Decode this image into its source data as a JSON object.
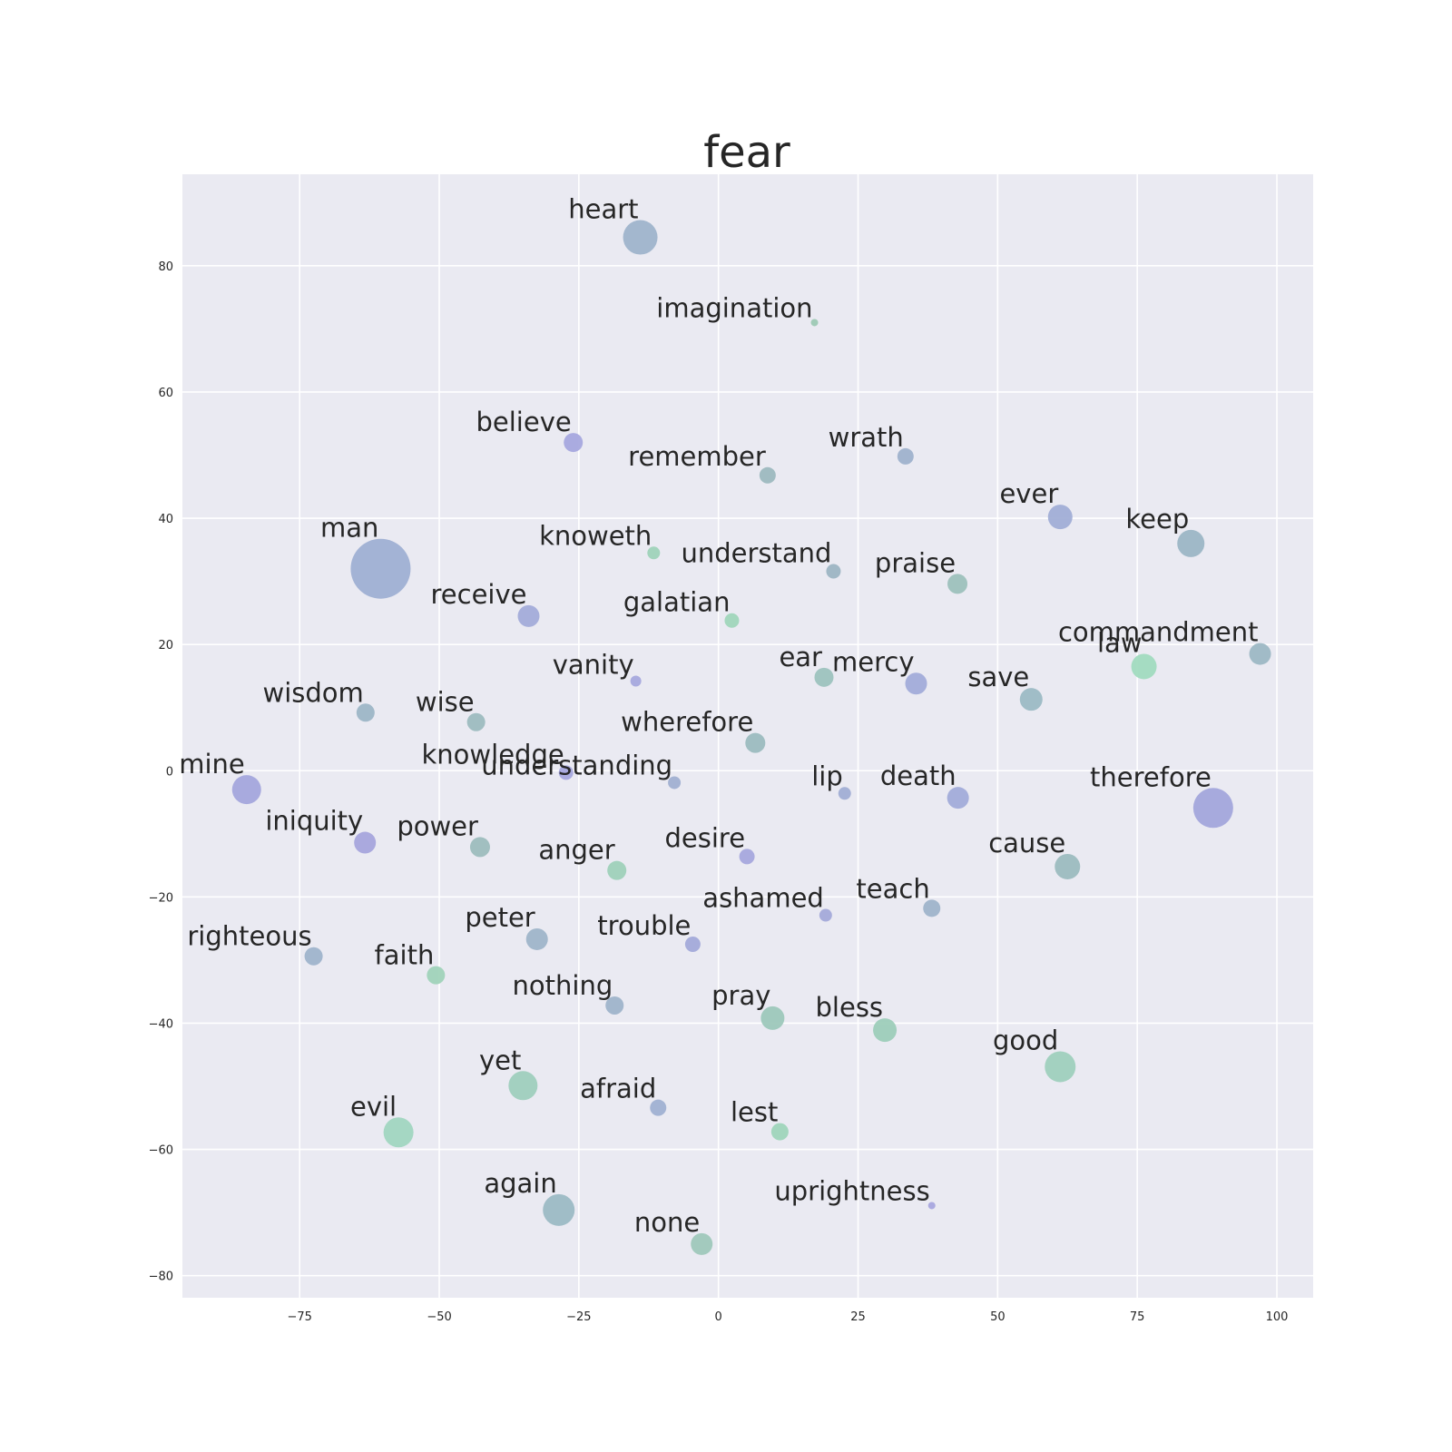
{
  "chart_data": {
    "type": "scatter",
    "title": "fear",
    "xlabel": "",
    "ylabel": "",
    "xlim": [
      -96,
      106.5
    ],
    "ylim": [
      -83.5,
      94.5
    ],
    "grid": true,
    "x_ticks": [
      -75,
      -50,
      -25,
      0,
      25,
      50,
      75,
      100
    ],
    "x_tick_labels": [
      "−75",
      "−50",
      "−25",
      "0",
      "25",
      "50",
      "75",
      "100"
    ],
    "y_ticks": [
      -80,
      -60,
      -40,
      -20,
      0,
      20,
      40,
      60,
      80
    ],
    "y_tick_labels": [
      "−80",
      "−60",
      "−40",
      "−20",
      "0",
      "20",
      "40",
      "60",
      "80"
    ],
    "colors": {
      "blue": "#9fb0d3",
      "purple": "#a3a6db",
      "slate": "#9db5c5",
      "teal": "#9dc3c0",
      "mint": "#a3d9c0"
    },
    "points": [
      {
        "label": "heart",
        "x": -14,
        "y": 84.5,
        "size": 19,
        "color": "#9fb4cb"
      },
      {
        "label": "imagination",
        "x": 17.2,
        "y": 71,
        "size": 4,
        "color": "#9dc9b4"
      },
      {
        "label": "believe",
        "x": -26,
        "y": 52,
        "size": 10.5,
        "color": "#a7a8de"
      },
      {
        "label": "remember",
        "x": 8.8,
        "y": 46.8,
        "size": 9,
        "color": "#9db9bf"
      },
      {
        "label": "wrath",
        "x": 33.5,
        "y": 49.8,
        "size": 9,
        "color": "#9fb2cc"
      },
      {
        "label": "ever",
        "x": 61.2,
        "y": 40.2,
        "size": 13.5,
        "color": "#a1aed6"
      },
      {
        "label": "keep",
        "x": 84.6,
        "y": 36,
        "size": 15,
        "color": "#9cb6c5"
      },
      {
        "label": "man",
        "x": -60.5,
        "y": 32,
        "size": 33,
        "color": "#9fb0d3"
      },
      {
        "label": "knoweth",
        "x": -11.6,
        "y": 34.5,
        "size": 7,
        "color": "#9fd3b9"
      },
      {
        "label": "understand",
        "x": 20.6,
        "y": 31.6,
        "size": 8,
        "color": "#9db5c3"
      },
      {
        "label": "praise",
        "x": 42.8,
        "y": 29.6,
        "size": 11,
        "color": "#9dc1bc"
      },
      {
        "label": "receive",
        "x": -34,
        "y": 24.5,
        "size": 12,
        "color": "#a3acd9"
      },
      {
        "label": "galatian",
        "x": 2.4,
        "y": 23.8,
        "size": 8,
        "color": "#a0d6bb"
      },
      {
        "label": "commandment",
        "x": 97,
        "y": 18.5,
        "size": 12,
        "color": "#9db8c4"
      },
      {
        "label": "law",
        "x": 76.2,
        "y": 16.5,
        "size": 14,
        "color": "#a1dbbf"
      },
      {
        "label": "vanity",
        "x": -14.8,
        "y": 14.2,
        "size": 6,
        "color": "#a6a9dd"
      },
      {
        "label": "ear",
        "x": 18.9,
        "y": 14.8,
        "size": 10.5,
        "color": "#9dc3be"
      },
      {
        "label": "mercy",
        "x": 35.4,
        "y": 13.8,
        "size": 12,
        "color": "#a2acd9"
      },
      {
        "label": "save",
        "x": 56,
        "y": 11.3,
        "size": 12.5,
        "color": "#9cbac4"
      },
      {
        "label": "wisdom",
        "x": -63.2,
        "y": 9.2,
        "size": 10,
        "color": "#9db6c6"
      },
      {
        "label": "wise",
        "x": -43.4,
        "y": 7.7,
        "size": 10,
        "color": "#9dbcbf"
      },
      {
        "label": "wherefore",
        "x": 6.6,
        "y": 4.4,
        "size": 11,
        "color": "#9cbcbf"
      },
      {
        "label": "knowledge",
        "x": -27.3,
        "y": -0.3,
        "size": 8,
        "color": "#a6a8dd"
      },
      {
        "label": "understanding",
        "x": -7.9,
        "y": -1.9,
        "size": 7,
        "color": "#a1b0d1"
      },
      {
        "label": "mine",
        "x": -84.5,
        "y": -3,
        "size": 16,
        "color": "#a4a6dc"
      },
      {
        "label": "lip",
        "x": 22.6,
        "y": -3.6,
        "size": 7,
        "color": "#a1aed4"
      },
      {
        "label": "death",
        "x": 42.9,
        "y": -4.3,
        "size": 12,
        "color": "#a2acd9"
      },
      {
        "label": "therefore",
        "x": 88.6,
        "y": -5.9,
        "size": 22,
        "color": "#a3a6db"
      },
      {
        "label": "iniquity",
        "x": -63.3,
        "y": -11.4,
        "size": 12,
        "color": "#a7a5dc"
      },
      {
        "label": "power",
        "x": -42.7,
        "y": -12.1,
        "size": 11,
        "color": "#9dbdbd"
      },
      {
        "label": "desire",
        "x": 5.1,
        "y": -13.6,
        "size": 8.5,
        "color": "#a6a8dd"
      },
      {
        "label": "anger",
        "x": -18.2,
        "y": -15.8,
        "size": 10.5,
        "color": "#9fd1b9"
      },
      {
        "label": "cause",
        "x": 62.5,
        "y": -15.2,
        "size": 14,
        "color": "#9cbcbf"
      },
      {
        "label": "ashamed",
        "x": 19.2,
        "y": -22.9,
        "size": 7,
        "color": "#a4aad9"
      },
      {
        "label": "teach",
        "x": 38.2,
        "y": -21.8,
        "size": 9.5,
        "color": "#9fb4ca"
      },
      {
        "label": "peter",
        "x": -32.5,
        "y": -26.7,
        "size": 12,
        "color": "#9fb5c9"
      },
      {
        "label": "trouble",
        "x": -4.6,
        "y": -27.5,
        "size": 8.5,
        "color": "#a3aad9"
      },
      {
        "label": "righteous",
        "x": -72.5,
        "y": -29.4,
        "size": 10,
        "color": "#9fb4cb"
      },
      {
        "label": "faith",
        "x": -50.6,
        "y": -32.4,
        "size": 10,
        "color": "#a0d3b9"
      },
      {
        "label": "nothing",
        "x": -18.6,
        "y": -37.2,
        "size": 10,
        "color": "#9fb4ca"
      },
      {
        "label": "pray",
        "x": 9.7,
        "y": -39.2,
        "size": 13,
        "color": "#9dc8ba"
      },
      {
        "label": "bless",
        "x": 29.8,
        "y": -41.1,
        "size": 13,
        "color": "#9dceb9"
      },
      {
        "label": "good",
        "x": 61.2,
        "y": -46.9,
        "size": 17,
        "color": "#9fd0bd"
      },
      {
        "label": "yet",
        "x": -35,
        "y": -49.9,
        "size": 16,
        "color": "#9fcfbd"
      },
      {
        "label": "afraid",
        "x": -10.8,
        "y": -53.4,
        "size": 9,
        "color": "#a0b1d2"
      },
      {
        "label": "evil",
        "x": -57.3,
        "y": -57.3,
        "size": 16.5,
        "color": "#a1d6c0"
      },
      {
        "label": "lest",
        "x": 11,
        "y": -57.2,
        "size": 9.5,
        "color": "#9fd5ba"
      },
      {
        "label": "again",
        "x": -28.6,
        "y": -69.6,
        "size": 17.5,
        "color": "#9cbac4"
      },
      {
        "label": "uprightness",
        "x": 38.2,
        "y": -68.9,
        "size": 4,
        "color": "#a8a6de"
      },
      {
        "label": "none",
        "x": -3,
        "y": -75,
        "size": 12,
        "color": "#9fc8bb"
      }
    ]
  }
}
